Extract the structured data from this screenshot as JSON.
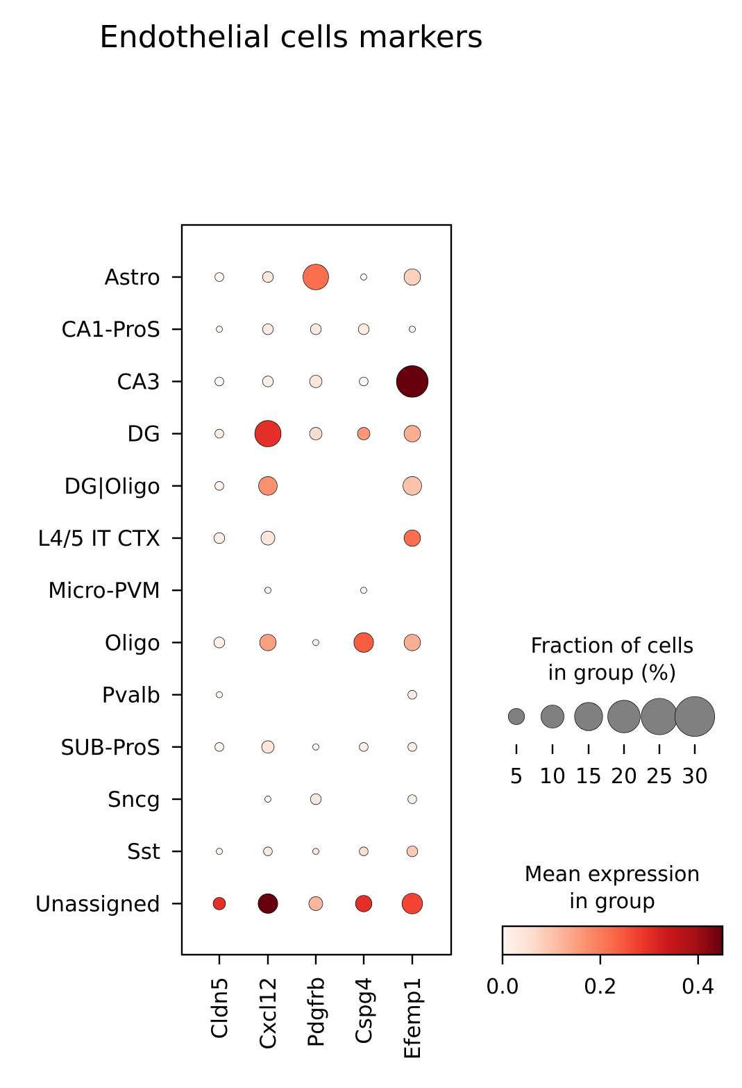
{
  "chart_data": {
    "type": "dotplot",
    "title": "Endothelial cells markers",
    "genes": [
      "Cldn5",
      "Cxcl12",
      "Pdgfrb",
      "Cspg4",
      "Efemp1"
    ],
    "groups": [
      "Astro",
      "CA1-ProS",
      "CA3",
      "DG",
      "DG|Oligo",
      "L4/5 IT CTX",
      "Micro-PVM",
      "Oligo",
      "Pvalb",
      "SUB-ProS",
      "Sncg",
      "Sst",
      "Unassigned"
    ],
    "fraction_pct": [
      [
        2,
        3,
        17,
        1,
        7
      ],
      [
        1,
        3,
        3,
        3,
        1
      ],
      [
        2,
        3,
        4,
        2,
        26
      ],
      [
        2,
        18,
        4,
        4,
        7
      ],
      [
        2,
        9,
        0,
        0,
        9
      ],
      [
        3,
        5,
        0,
        0,
        7
      ],
      [
        0,
        1,
        0,
        1,
        0
      ],
      [
        3,
        7,
        1,
        10,
        7
      ],
      [
        1,
        0,
        0,
        0,
        2
      ],
      [
        2,
        4,
        1,
        2,
        2
      ],
      [
        0,
        1,
        3,
        0,
        2
      ],
      [
        1,
        2,
        1,
        2,
        3
      ],
      [
        4,
        10,
        5,
        7,
        11
      ]
    ],
    "mean_expression": [
      [
        0.0,
        0.03,
        0.22,
        0.0,
        0.08
      ],
      [
        0.0,
        0.03,
        0.03,
        0.03,
        0.0
      ],
      [
        0.0,
        0.02,
        0.04,
        0.0,
        0.45
      ],
      [
        0.02,
        0.3,
        0.06,
        0.16,
        0.13
      ],
      [
        0.01,
        0.17,
        0.0,
        0.0,
        0.1
      ],
      [
        0.02,
        0.04,
        0.0,
        0.0,
        0.22
      ],
      [
        0.0,
        0.0,
        0.0,
        0.0,
        0.0
      ],
      [
        0.02,
        0.15,
        0.0,
        0.24,
        0.13
      ],
      [
        0.0,
        0.0,
        0.0,
        0.0,
        0.02
      ],
      [
        0.01,
        0.04,
        0.0,
        0.02,
        0.02
      ],
      [
        0.0,
        0.0,
        0.03,
        0.0,
        0.01
      ],
      [
        0.0,
        0.03,
        0.03,
        0.06,
        0.09
      ],
      [
        0.3,
        0.45,
        0.12,
        0.3,
        0.27
      ]
    ],
    "size_legend": {
      "title_line1": "Fraction of cells",
      "title_line2": "in group (%)",
      "values": [
        5,
        10,
        15,
        20,
        25,
        30
      ],
      "labels": [
        "5",
        "10",
        "15",
        "20",
        "25",
        "30"
      ]
    },
    "color_legend": {
      "title_line1": "Mean expression",
      "title_line2": "in group",
      "range": [
        0.0,
        0.45
      ],
      "ticks": [
        0.0,
        0.2,
        0.4
      ],
      "tick_labels": [
        "0.0",
        "0.2",
        "0.4"
      ],
      "colormap": "Reds",
      "colors": [
        "#fff5f0",
        "#fee0d2",
        "#fcbba1",
        "#fc9272",
        "#fb6a4a",
        "#ef3b2c",
        "#cb181d",
        "#a50f15",
        "#67000d"
      ]
    },
    "grid": false
  }
}
